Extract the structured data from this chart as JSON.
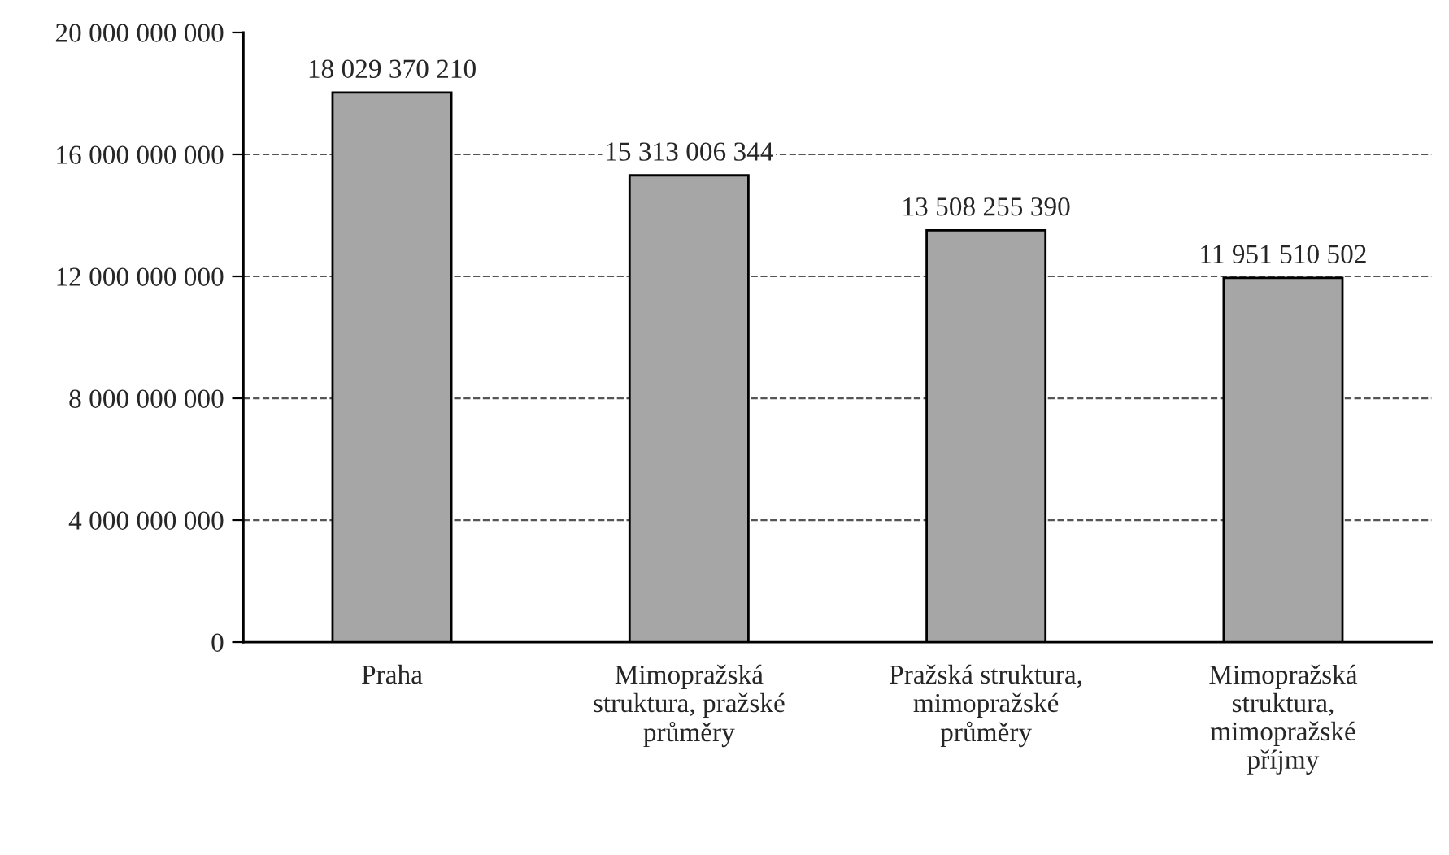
{
  "chart_data": {
    "type": "bar",
    "categories": [
      "Praha",
      "Mimopražská\nstruktura, pražské\nprůměry",
      "Pražská struktura,\nmimopražské\nprůměry",
      "Mimopražská\nstruktura,\nmimopražské\npříjmy"
    ],
    "values": [
      18029370210,
      15313006344,
      13508255390,
      11951510502
    ],
    "value_labels": [
      "18 029 370 210",
      "15 313 006 344",
      "13 508 255 390",
      "11 951 510 502"
    ],
    "color": "#a6a6a6",
    "ylim": [
      0,
      20000000000
    ],
    "yticks": [
      {
        "value": 0,
        "label": "0"
      },
      {
        "value": 4000000000,
        "label": "4 000 000 000"
      },
      {
        "value": 8000000000,
        "label": "8 000 000 000"
      },
      {
        "value": 12000000000,
        "label": "12 000 000 000"
      },
      {
        "value": 16000000000,
        "label": "16 000 000 000"
      },
      {
        "value": 20000000000,
        "label": "20 000 000 000"
      }
    ],
    "grid": "y",
    "line_style": "dashed",
    "legend": false
  }
}
